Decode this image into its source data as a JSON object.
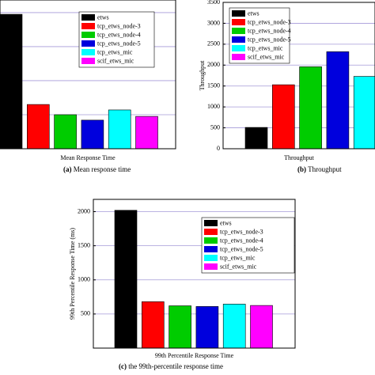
{
  "chart_data": [
    {
      "type": "bar",
      "categories": [
        "Mean Response Time"
      ],
      "caption_label": "(a)",
      "caption": "Mean response time",
      "ylim": [
        0,
        4.37
      ],
      "grid_values": [
        1,
        2,
        3,
        4
      ],
      "grid": true,
      "series": [
        {
          "name": "etws",
          "color": "#000000",
          "values": [
            3.95
          ]
        },
        {
          "name": "tcp_etws_node-3",
          "color": "#ff0000",
          "values": [
            1.3
          ]
        },
        {
          "name": "tcp_etws_node-4",
          "color": "#00cc00",
          "values": [
            1.0
          ]
        },
        {
          "name": "tcp_etws_node-5",
          "color": "#0000dd",
          "values": [
            0.84
          ]
        },
        {
          "name": "tcp_etws_mic",
          "color": "#00ffff",
          "values": [
            1.14
          ]
        },
        {
          "name": "scif_etws_mic",
          "color": "#ff00ff",
          "values": [
            0.95
          ]
        }
      ]
    },
    {
      "type": "bar",
      "categories": [
        "Throughput"
      ],
      "caption_label": "(b)",
      "caption": "Throughput",
      "ylabel": "Throughput",
      "ylim": [
        0,
        3500
      ],
      "yticks": [
        0,
        500,
        1000,
        1500,
        2000,
        2500,
        3000,
        3500
      ],
      "grid": true,
      "series": [
        {
          "name": "etws",
          "color": "#000000",
          "values": [
            510
          ]
        },
        {
          "name": "tcp_etws_node-3",
          "color": "#ff0000",
          "values": [
            1530
          ]
        },
        {
          "name": "tcp_etws_node-4",
          "color": "#00cc00",
          "values": [
            1960
          ]
        },
        {
          "name": "tcp_etws_node-5",
          "color": "#0000dd",
          "values": [
            2320
          ]
        },
        {
          "name": "tcp_etws_mic",
          "color": "#00ffff",
          "values": [
            1730
          ]
        },
        {
          "name": "scif_etws_mic",
          "color": "#ff00ff",
          "values": [
            null
          ]
        }
      ]
    },
    {
      "type": "bar",
      "categories": [
        "99th Percentile Response Time"
      ],
      "caption_label": "(c)",
      "caption": "the 99th-percentile response time",
      "ylabel": "99th Percentile Response Time (ms)",
      "ylim": [
        0,
        2180
      ],
      "yticks": [
        500,
        1000,
        1500,
        2000
      ],
      "grid": true,
      "series": [
        {
          "name": "etws",
          "color": "#000000",
          "values": [
            2020
          ]
        },
        {
          "name": "tcp_etws_node-3",
          "color": "#ff0000",
          "values": [
            680
          ]
        },
        {
          "name": "tcp_etws_node-4",
          "color": "#00cc00",
          "values": [
            620
          ]
        },
        {
          "name": "tcp_etws_node-5",
          "color": "#0000dd",
          "values": [
            610
          ]
        },
        {
          "name": "tcp_etws_mic",
          "color": "#00ffff",
          "values": [
            645
          ]
        },
        {
          "name": "scif_etws_mic",
          "color": "#ff00ff",
          "values": [
            625
          ]
        }
      ]
    }
  ]
}
